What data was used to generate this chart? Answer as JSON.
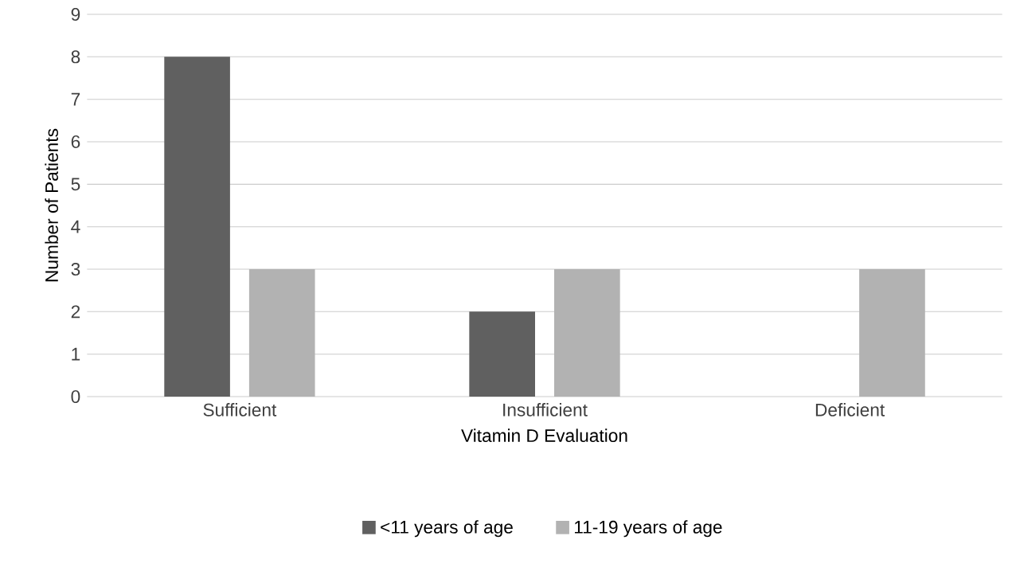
{
  "chart_data": {
    "type": "bar",
    "xlabel": "Vitamin D Evaluation",
    "ylabel": "Number of Patients",
    "categories": [
      "Sufficient",
      "Insufficient",
      "Deficient"
    ],
    "series": [
      {
        "name": "<11 years of age",
        "color": "#606060",
        "values": [
          8,
          2,
          0
        ]
      },
      {
        "name": "11-19 years of age",
        "color": "#b2b2b2",
        "values": [
          3,
          3,
          3
        ]
      }
    ],
    "ylim": [
      0,
      9
    ],
    "yticks": [
      0,
      1,
      2,
      3,
      4,
      5,
      6,
      7,
      8,
      9
    ],
    "grid": "y",
    "legend": "bottom"
  }
}
